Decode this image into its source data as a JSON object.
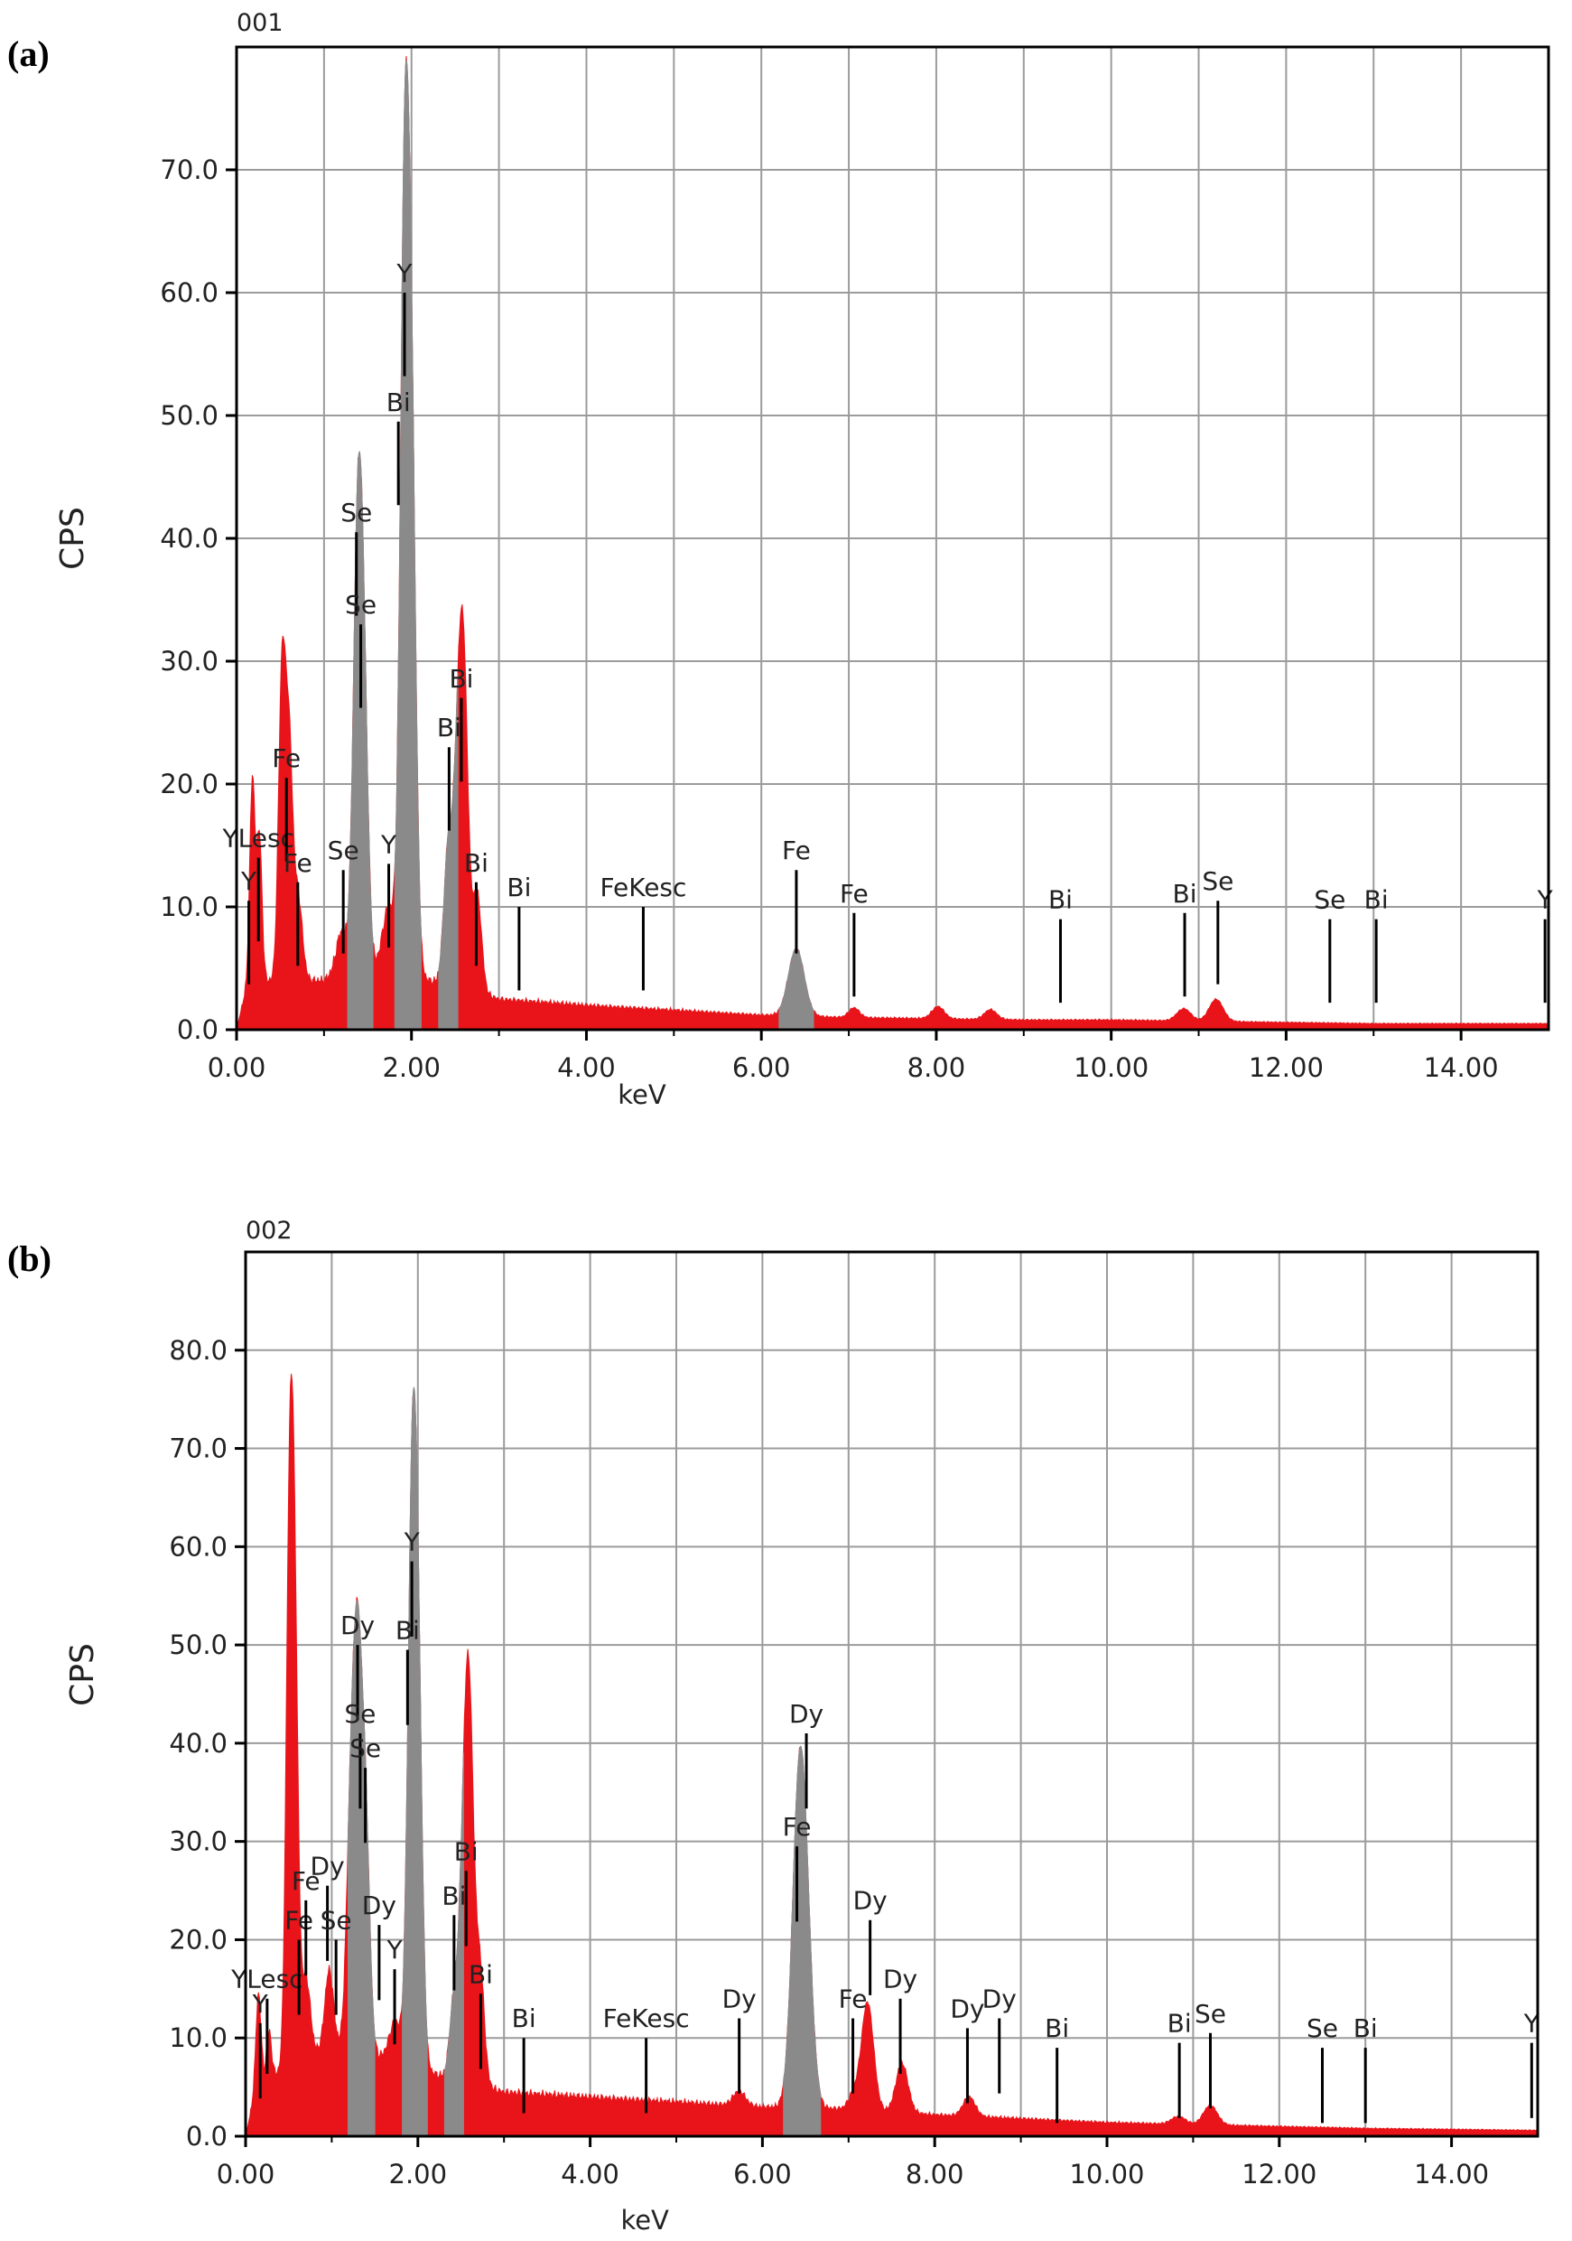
{
  "colors": {
    "spectrum": "#e8141a",
    "highlight": "#8a8a8a",
    "grid": "#9b9b9b",
    "axis": "#000000",
    "text": "#222222"
  },
  "chart_data": [
    {
      "type": "area",
      "panel_label": "(a)",
      "spectrum_id": "001",
      "xlabel": "keV",
      "ylabel": "CPS",
      "xlim": [
        0,
        15
      ],
      "ylim": [
        0,
        80
      ],
      "grid": true,
      "x_ticks": [
        "0.00",
        "2.00",
        "4.00",
        "6.00",
        "8.00",
        "10.00",
        "12.00",
        "14.00"
      ],
      "x_tick_values": [
        0,
        2,
        4,
        6,
        8,
        10,
        12,
        14
      ],
      "y_ticks": [
        "0.0",
        "10.0",
        "20.0",
        "30.0",
        "40.0",
        "50.0",
        "60.0",
        "70.0"
      ],
      "y_tick_values": [
        0,
        10,
        20,
        30,
        40,
        50,
        60,
        70
      ],
      "baseline": [
        [
          0.0,
          0
        ],
        [
          0.1,
          3
        ],
        [
          0.3,
          4
        ],
        [
          0.8,
          4
        ],
        [
          1.0,
          4
        ],
        [
          1.2,
          5
        ],
        [
          1.5,
          5
        ],
        [
          1.9,
          5
        ],
        [
          2.2,
          4
        ],
        [
          2.8,
          3
        ],
        [
          3.0,
          2.5
        ],
        [
          4.0,
          2
        ],
        [
          5.0,
          1.6
        ],
        [
          6.0,
          1.2
        ],
        [
          7.0,
          1.0
        ],
        [
          8.0,
          0.9
        ],
        [
          9.0,
          0.8
        ],
        [
          10.0,
          0.8
        ],
        [
          11.0,
          0.7
        ],
        [
          12.0,
          0.6
        ],
        [
          13.0,
          0.5
        ],
        [
          14.0,
          0.5
        ],
        [
          15.0,
          0.5
        ]
      ],
      "peaks": [
        {
          "x": 0.18,
          "h": 17,
          "w": 0.03,
          "hl": false
        },
        {
          "x": 0.26,
          "h": 12,
          "w": 0.03,
          "hl": false
        },
        {
          "x": 0.52,
          "h": 25,
          "w": 0.04,
          "hl": false
        },
        {
          "x": 0.6,
          "h": 18,
          "w": 0.04,
          "hl": false
        },
        {
          "x": 0.7,
          "h": 7,
          "w": 0.05,
          "hl": false
        },
        {
          "x": 1.2,
          "h": 3,
          "w": 0.06,
          "hl": false
        },
        {
          "x": 1.38,
          "h": 31,
          "w": 0.05,
          "hl": true
        },
        {
          "x": 1.45,
          "h": 22,
          "w": 0.05,
          "hl": true
        },
        {
          "x": 1.74,
          "h": 5,
          "w": 0.07,
          "hl": false
        },
        {
          "x": 1.92,
          "h": 59,
          "w": 0.05,
          "hl": true
        },
        {
          "x": 2.0,
          "h": 40,
          "w": 0.05,
          "hl": true
        },
        {
          "x": 2.42,
          "h": 11,
          "w": 0.05,
          "hl": true
        },
        {
          "x": 2.53,
          "h": 16,
          "w": 0.05,
          "hl": false
        },
        {
          "x": 2.6,
          "h": 23,
          "w": 0.05,
          "hl": false
        },
        {
          "x": 2.75,
          "h": 8,
          "w": 0.05,
          "hl": false
        },
        {
          "x": 6.4,
          "h": 5.5,
          "w": 0.09,
          "hl": true
        },
        {
          "x": 7.06,
          "h": 0.8,
          "w": 0.06,
          "hl": false
        },
        {
          "x": 8.02,
          "h": 1.0,
          "w": 0.07,
          "hl": false
        },
        {
          "x": 8.62,
          "h": 0.8,
          "w": 0.07,
          "hl": false
        },
        {
          "x": 10.83,
          "h": 1.0,
          "w": 0.08,
          "hl": false
        },
        {
          "x": 11.2,
          "h": 1.8,
          "w": 0.08,
          "hl": false
        }
      ],
      "markers": [
        {
          "x": 0.14,
          "h": 10.5,
          "label": "Y"
        },
        {
          "x": 0.25,
          "h": 14.0,
          "label": "YLesc"
        },
        {
          "x": 0.57,
          "h": 20.5,
          "label": "Fe"
        },
        {
          "x": 0.7,
          "h": 12.0,
          "label": "Fe"
        },
        {
          "x": 1.22,
          "h": 13.0,
          "label": "Se"
        },
        {
          "x": 1.37,
          "h": 40.5,
          "label": "Se"
        },
        {
          "x": 1.42,
          "h": 33.0,
          "label": "Se"
        },
        {
          "x": 1.74,
          "h": 13.5,
          "label": "Y"
        },
        {
          "x": 1.92,
          "h": 60.0,
          "label": "Y"
        },
        {
          "x": 1.85,
          "h": 49.5,
          "label": "Bi"
        },
        {
          "x": 2.43,
          "h": 23.0,
          "label": "Bi"
        },
        {
          "x": 2.57,
          "h": 27.0,
          "label": "Bi"
        },
        {
          "x": 2.74,
          "h": 12.0,
          "label": "Bi"
        },
        {
          "x": 3.23,
          "h": 10.0,
          "label": "Bi"
        },
        {
          "x": 4.65,
          "h": 10.0,
          "label": "FeKesc"
        },
        {
          "x": 6.4,
          "h": 13.0,
          "label": "Fe"
        },
        {
          "x": 7.06,
          "h": 9.5,
          "label": "Fe"
        },
        {
          "x": 9.42,
          "h": 9.0,
          "label": "Bi"
        },
        {
          "x": 10.84,
          "h": 9.5,
          "label": "Bi"
        },
        {
          "x": 11.22,
          "h": 10.5,
          "label": "Se"
        },
        {
          "x": 12.5,
          "h": 9.0,
          "label": "Se"
        },
        {
          "x": 13.03,
          "h": 9.0,
          "label": "Bi"
        },
        {
          "x": 14.96,
          "h": 9.0,
          "label": "Y"
        }
      ]
    },
    {
      "type": "area",
      "panel_label": "(b)",
      "spectrum_id": "002",
      "xlabel": "keV",
      "ylabel": "CPS",
      "xlim": [
        0,
        15
      ],
      "ylim": [
        0,
        90
      ],
      "grid": true,
      "x_ticks": [
        "0.00",
        "2.00",
        "4.00",
        "6.00",
        "8.00",
        "10.00",
        "12.00",
        "14.00"
      ],
      "x_tick_values": [
        0,
        2,
        4,
        6,
        8,
        10,
        12,
        14
      ],
      "y_ticks": [
        "0.0",
        "10.0",
        "20.0",
        "30.0",
        "40.0",
        "50.0",
        "60.0",
        "70.0",
        "80.0"
      ],
      "y_tick_values": [
        0,
        10,
        20,
        30,
        40,
        50,
        60,
        70,
        80
      ],
      "baseline": [
        [
          0.0,
          0
        ],
        [
          0.1,
          4
        ],
        [
          0.3,
          6
        ],
        [
          0.6,
          8
        ],
        [
          1.0,
          9
        ],
        [
          1.2,
          9
        ],
        [
          1.6,
          8
        ],
        [
          2.0,
          7
        ],
        [
          2.3,
          6
        ],
        [
          2.8,
          5
        ],
        [
          3.0,
          4.5
        ],
        [
          4.0,
          4
        ],
        [
          5.0,
          3.5
        ],
        [
          6.0,
          3
        ],
        [
          7.0,
          2.8
        ],
        [
          8.0,
          2.2
        ],
        [
          9.0,
          1.8
        ],
        [
          10.0,
          1.4
        ],
        [
          11.0,
          1.2
        ],
        [
          12.0,
          1.0
        ],
        [
          13.0,
          0.8
        ],
        [
          14.0,
          0.7
        ],
        [
          15.0,
          0.6
        ]
      ],
      "peaks": [
        {
          "x": 0.15,
          "h": 10,
          "w": 0.03,
          "hl": false
        },
        {
          "x": 0.27,
          "h": 5,
          "w": 0.03,
          "hl": false
        },
        {
          "x": 0.51,
          "h": 52,
          "w": 0.04,
          "hl": false
        },
        {
          "x": 0.57,
          "h": 40,
          "w": 0.04,
          "hl": false
        },
        {
          "x": 0.7,
          "h": 8,
          "w": 0.05,
          "hl": false
        },
        {
          "x": 0.97,
          "h": 8,
          "w": 0.05,
          "hl": false
        },
        {
          "x": 1.22,
          "h": 22,
          "w": 0.05,
          "hl": false
        },
        {
          "x": 1.3,
          "h": 35,
          "w": 0.05,
          "hl": true
        },
        {
          "x": 1.39,
          "h": 23,
          "w": 0.05,
          "hl": true
        },
        {
          "x": 1.74,
          "h": 4,
          "w": 0.07,
          "hl": false
        },
        {
          "x": 1.93,
          "h": 51,
          "w": 0.05,
          "hl": true
        },
        {
          "x": 2.0,
          "h": 36,
          "w": 0.05,
          "hl": true
        },
        {
          "x": 2.42,
          "h": 8,
          "w": 0.05,
          "hl": true
        },
        {
          "x": 2.53,
          "h": 20,
          "w": 0.05,
          "hl": false
        },
        {
          "x": 2.6,
          "h": 34,
          "w": 0.05,
          "hl": false
        },
        {
          "x": 2.72,
          "h": 12,
          "w": 0.05,
          "hl": false
        },
        {
          "x": 5.73,
          "h": 1.5,
          "w": 0.07,
          "hl": false
        },
        {
          "x": 6.42,
          "h": 27,
          "w": 0.08,
          "hl": true
        },
        {
          "x": 6.5,
          "h": 14,
          "w": 0.08,
          "hl": true
        },
        {
          "x": 7.06,
          "h": 1.5,
          "w": 0.06,
          "hl": false
        },
        {
          "x": 7.22,
          "h": 11,
          "w": 0.07,
          "hl": false
        },
        {
          "x": 7.62,
          "h": 5,
          "w": 0.07,
          "hl": false
        },
        {
          "x": 8.4,
          "h": 2,
          "w": 0.07,
          "hl": false
        },
        {
          "x": 10.83,
          "h": 0.8,
          "w": 0.08,
          "hl": false
        },
        {
          "x": 11.2,
          "h": 2,
          "w": 0.08,
          "hl": false
        }
      ],
      "markers": [
        {
          "x": 0.17,
          "h": 11.5,
          "label": "Y"
        },
        {
          "x": 0.25,
          "h": 14.0,
          "label": "YLesc"
        },
        {
          "x": 0.62,
          "h": 20.0,
          "label": "Fe"
        },
        {
          "x": 0.7,
          "h": 24.0,
          "label": "Fe"
        },
        {
          "x": 0.95,
          "h": 25.5,
          "label": "Dy"
        },
        {
          "x": 1.05,
          "h": 20.0,
          "label": "Se"
        },
        {
          "x": 1.3,
          "h": 50.0,
          "label": "Dy"
        },
        {
          "x": 1.33,
          "h": 41.0,
          "label": "Se"
        },
        {
          "x": 1.39,
          "h": 37.5,
          "label": "Se"
        },
        {
          "x": 1.55,
          "h": 21.5,
          "label": "Dy"
        },
        {
          "x": 1.73,
          "h": 17.0,
          "label": "Y"
        },
        {
          "x": 1.93,
          "h": 58.5,
          "label": "Y"
        },
        {
          "x": 1.88,
          "h": 49.5,
          "label": "Bi"
        },
        {
          "x": 2.42,
          "h": 22.5,
          "label": "Bi"
        },
        {
          "x": 2.56,
          "h": 27.0,
          "label": "Bi"
        },
        {
          "x": 2.73,
          "h": 14.5,
          "label": "Bi"
        },
        {
          "x": 3.23,
          "h": 10.0,
          "label": "Bi"
        },
        {
          "x": 4.65,
          "h": 10.0,
          "label": "FeKesc"
        },
        {
          "x": 5.73,
          "h": 12.0,
          "label": "Dy"
        },
        {
          "x": 6.51,
          "h": 41.0,
          "label": "Dy"
        },
        {
          "x": 6.4,
          "h": 29.5,
          "label": "Fe"
        },
        {
          "x": 7.05,
          "h": 12.0,
          "label": "Fe"
        },
        {
          "x": 7.25,
          "h": 22.0,
          "label": "Dy"
        },
        {
          "x": 7.6,
          "h": 14.0,
          "label": "Dy"
        },
        {
          "x": 8.38,
          "h": 11.0,
          "label": "Dy"
        },
        {
          "x": 8.75,
          "h": 12.0,
          "label": "Dy"
        },
        {
          "x": 9.42,
          "h": 9.0,
          "label": "Bi"
        },
        {
          "x": 10.84,
          "h": 9.5,
          "label": "Bi"
        },
        {
          "x": 11.2,
          "h": 10.5,
          "label": "Se"
        },
        {
          "x": 12.5,
          "h": 9.0,
          "label": "Se"
        },
        {
          "x": 13.0,
          "h": 9.0,
          "label": "Bi"
        },
        {
          "x": 14.93,
          "h": 9.5,
          "label": "Y"
        }
      ]
    }
  ]
}
